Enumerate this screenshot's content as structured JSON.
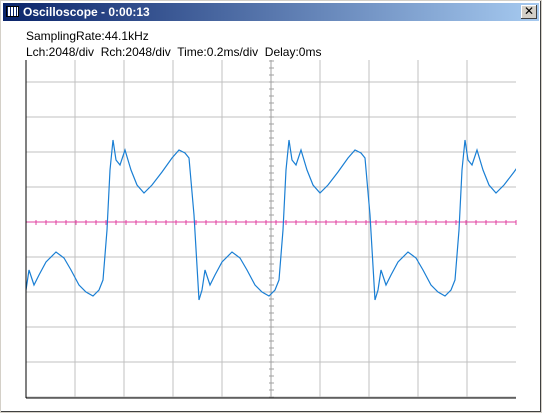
{
  "window": {
    "title": "Oscilloscope - 0:00:13"
  },
  "info": {
    "sampling_rate": "SamplingRate:44.1kHz",
    "settings": "Lch:2048/div  Rch:2048/div  Time:0.2ms/div  Delay:0ms"
  }
}
